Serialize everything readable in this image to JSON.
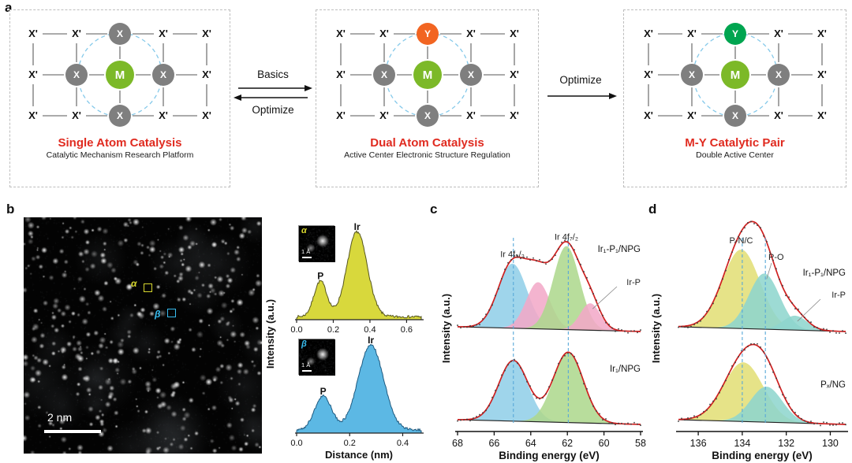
{
  "labels": {
    "a": "a",
    "b": "b",
    "c": "c",
    "d": "d"
  },
  "panel_a": {
    "lattice_symbol": "X'",
    "atom_colors": {
      "M": "#7cb928",
      "X": "#7f7f7f",
      "Y_dual": "#f26522",
      "Y_pair": "#00a550"
    },
    "title_color": "#e02b20",
    "arrows": {
      "between_1_2": {
        "top": "Basics",
        "bottom": "Optimize"
      },
      "between_2_3": {
        "top": "Optimize"
      }
    },
    "boxes": [
      {
        "title": "Single Atom Catalysis",
        "subtitle": "Catalytic Mechanism Research Platform",
        "center": {
          "label": "M",
          "color": "#7cb928"
        },
        "top": {
          "label": "X",
          "color": "#7f7f7f"
        },
        "side": {
          "label": "X",
          "color": "#7f7f7f"
        },
        "bottom": {
          "label": "X",
          "color": "#7f7f7f"
        }
      },
      {
        "title": "Dual Atom Catalysis",
        "subtitle": "Active Center Electronic Structure Regulation",
        "center": {
          "label": "M",
          "color": "#7cb928"
        },
        "top": {
          "label": "Y",
          "color": "#f26522"
        },
        "side": {
          "label": "X",
          "color": "#7f7f7f"
        },
        "bottom": {
          "label": "X",
          "color": "#7f7f7f"
        }
      },
      {
        "title": "M-Y Catalytic Pair",
        "subtitle": "Double Active Center",
        "center": {
          "label": "M",
          "color": "#7cb928"
        },
        "top": {
          "label": "Y",
          "color": "#00a550"
        },
        "side": {
          "label": "X",
          "color": "#7f7f7f"
        },
        "bottom": {
          "label": "X",
          "color": "#7f7f7f"
        }
      }
    ]
  },
  "panel_b": {
    "scalebar": "2 nm",
    "marker_alpha": "α",
    "marker_beta": "β",
    "marker_alpha_color": "#d6d62e",
    "marker_beta_color": "#38bdf0"
  },
  "chart_data": [
    {
      "id": "linescan_alpha",
      "type": "area",
      "ylabel": "Intensity (a.u.)",
      "xlabel": "Distance (nm)",
      "xlim": [
        0,
        0.68
      ],
      "xticks": [
        "0.0",
        "0.2",
        "0.4",
        "0.6"
      ],
      "xtick_vals": [
        0,
        0.2,
        0.4,
        0.6
      ],
      "color": "#d8d83c",
      "outline": "#55551e",
      "peaks": [
        {
          "label": "P",
          "center": 0.13,
          "sigma": 0.035,
          "height": 0.42
        },
        {
          "label": "Ir",
          "center": 0.33,
          "sigma": 0.055,
          "height": 1.0
        }
      ],
      "inset": {
        "label": "α",
        "scalebar": "1 Å"
      }
    },
    {
      "id": "linescan_beta",
      "type": "area",
      "ylabel": "Intensity (a.u.)",
      "xlabel": "Distance (nm)",
      "xlim": [
        0,
        0.47
      ],
      "xticks": [
        "0.0",
        "0.2",
        "0.4"
      ],
      "xtick_vals": [
        0,
        0.2,
        0.4
      ],
      "color": "#5cb8e4",
      "outline": "#1e5a80",
      "peaks": [
        {
          "label": "P",
          "center": 0.1,
          "sigma": 0.032,
          "height": 0.4
        },
        {
          "label": "Ir",
          "center": 0.28,
          "sigma": 0.048,
          "height": 1.0
        }
      ],
      "inset": {
        "label": "β",
        "scalebar": "1 Å"
      }
    },
    {
      "id": "xps_ir4f",
      "type": "line",
      "ylabel": "Intensity (a.u.)",
      "xlabel": "Binding energy (eV)",
      "xlim": [
        68,
        58
      ],
      "xticks": [
        68,
        66,
        64,
        62,
        60,
        58
      ],
      "guides": [
        64.95,
        61.95
      ],
      "envelope_color": "#cf2020",
      "guide_color": "#58a8d8",
      "spectra": [
        {
          "name": "Ir₁-P₁/NPG",
          "peaks": [
            {
              "label": "Ir 4f₅/₂",
              "center": 65.0,
              "sigma": 0.78,
              "height": 0.72,
              "color": "#92cfe8"
            },
            {
              "center": 63.6,
              "sigma": 0.65,
              "height": 0.52,
              "color": "#f2aac8"
            },
            {
              "label": "Ir 4f₇/₂",
              "center": 62.05,
              "sigma": 0.72,
              "height": 0.93,
              "color": "#aed88e"
            },
            {
              "label": "Ir-P",
              "center": 60.75,
              "sigma": 0.55,
              "height": 0.3,
              "color": "#f2aac8"
            }
          ]
        },
        {
          "name": "Ir₁/NPG",
          "peaks": [
            {
              "center": 64.95,
              "sigma": 0.8,
              "height": 0.82,
              "color": "#92cfe8"
            },
            {
              "center": 61.95,
              "sigma": 0.82,
              "height": 0.95,
              "color": "#aed88e"
            }
          ]
        }
      ]
    },
    {
      "id": "xps_p2p",
      "type": "line",
      "ylabel": "Intensity (a.u.)",
      "xlabel": "Binding energy (eV)",
      "xlim": [
        136.9,
        129.3
      ],
      "xticks": [
        136,
        134,
        132,
        130
      ],
      "guides": [
        134.0,
        132.95
      ],
      "envelope_color": "#cf2020",
      "guide_color": "#58a8d8",
      "spectra": [
        {
          "name": "Ir₁-P₁/NPG",
          "peaks": [
            {
              "label": "P-N/C",
              "center": 134.05,
              "sigma": 0.85,
              "height": 0.88,
              "color": "#e2df78"
            },
            {
              "label": "P-O",
              "center": 133.0,
              "sigma": 0.7,
              "height": 0.62,
              "color": "#8fd6ce"
            },
            {
              "label": "Ir-P",
              "center": 131.6,
              "sigma": 0.55,
              "height": 0.16,
              "color": "#8fd6ce"
            }
          ]
        },
        {
          "name": "Pₓ/NG",
          "peaks": [
            {
              "center": 133.95,
              "sigma": 0.9,
              "height": 0.8,
              "color": "#e2df78"
            },
            {
              "center": 132.9,
              "sigma": 0.72,
              "height": 0.48,
              "color": "#8fd6ce"
            }
          ]
        }
      ]
    }
  ]
}
